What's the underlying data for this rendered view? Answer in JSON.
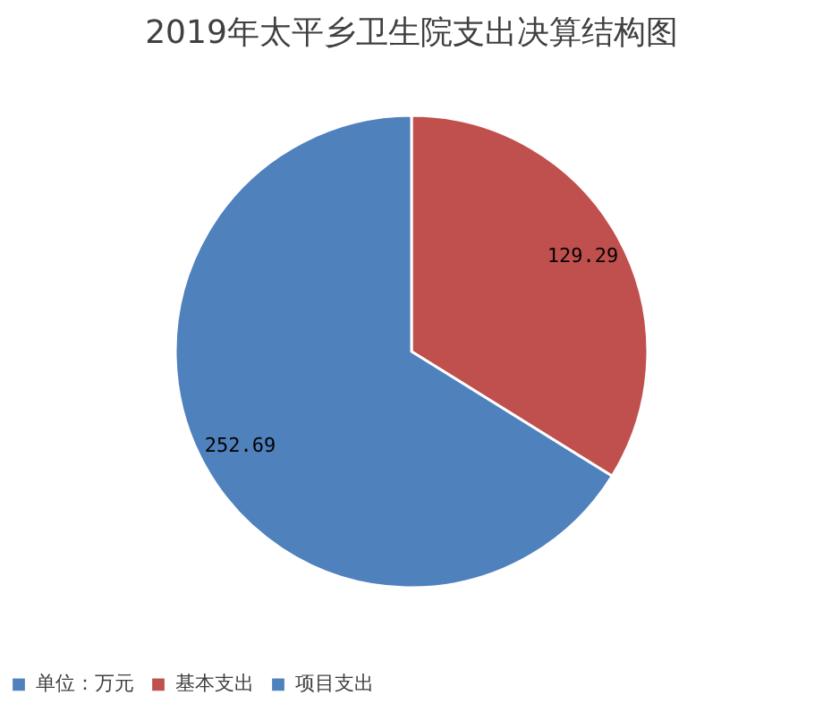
{
  "chart_data": {
    "type": "pie",
    "title": "2019年太平乡卫生院支出决算结构图",
    "categories": [
      "单位：万元",
      "基本支出",
      "项目支出"
    ],
    "values": [
      0,
      129.29,
      252.69
    ],
    "colors": [
      "#4f81bd",
      "#c0504d",
      "#4f81bd"
    ],
    "value_labels": [
      null,
      "129.29",
      "252.69"
    ],
    "legend": "bottom"
  }
}
